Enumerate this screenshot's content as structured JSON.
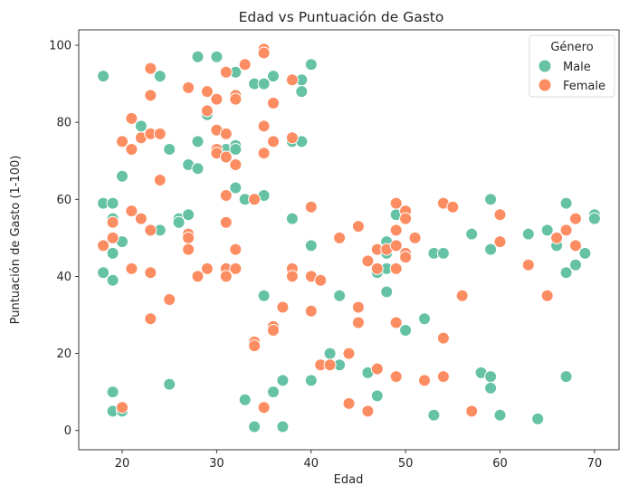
{
  "chart_data": {
    "type": "scatter",
    "title": "Edad vs Puntuación de Gasto",
    "xlabel": "Edad",
    "ylabel": "Puntuación de Gasto (1-100)",
    "xlim": [
      15.4,
      72.6
    ],
    "ylim": [
      -5,
      104
    ],
    "xticks": [
      20,
      30,
      40,
      50,
      60,
      70
    ],
    "yticks": [
      0,
      20,
      40,
      60,
      80,
      100
    ],
    "grid": false,
    "legend": {
      "title": "Género",
      "placement": "top-right"
    },
    "series": [
      {
        "name": "Male",
        "color": "#66c2a5",
        "points": [
          [
            18,
            92
          ],
          [
            18,
            59
          ],
          [
            18,
            41
          ],
          [
            19,
            59
          ],
          [
            19,
            55
          ],
          [
            19,
            46
          ],
          [
            19,
            39
          ],
          [
            19,
            10
          ],
          [
            19,
            5
          ],
          [
            20,
            66
          ],
          [
            20,
            49
          ],
          [
            20,
            5
          ],
          [
            22,
            79
          ],
          [
            24,
            92
          ],
          [
            24,
            52
          ],
          [
            25,
            73
          ],
          [
            25,
            12
          ],
          [
            26,
            55
          ],
          [
            26,
            54
          ],
          [
            27,
            69
          ],
          [
            27,
            56
          ],
          [
            28,
            97
          ],
          [
            28,
            75
          ],
          [
            28,
            68
          ],
          [
            29,
            82
          ],
          [
            30,
            97
          ],
          [
            31,
            73
          ],
          [
            32,
            93
          ],
          [
            32,
            74
          ],
          [
            32,
            73
          ],
          [
            32,
            63
          ],
          [
            33,
            60
          ],
          [
            33,
            8
          ],
          [
            34,
            90
          ],
          [
            34,
            1
          ],
          [
            35,
            90
          ],
          [
            35,
            61
          ],
          [
            35,
            35
          ],
          [
            36,
            92
          ],
          [
            36,
            10
          ],
          [
            37,
            13
          ],
          [
            37,
            1
          ],
          [
            38,
            55
          ],
          [
            38,
            75
          ],
          [
            39,
            91
          ],
          [
            39,
            88
          ],
          [
            39,
            75
          ],
          [
            40,
            95
          ],
          [
            40,
            48
          ],
          [
            40,
            13
          ],
          [
            42,
            20
          ],
          [
            43,
            17
          ],
          [
            43,
            35
          ],
          [
            46,
            15
          ],
          [
            47,
            41
          ],
          [
            47,
            9
          ],
          [
            48,
            49
          ],
          [
            48,
            46
          ],
          [
            48,
            42
          ],
          [
            48,
            36
          ],
          [
            49,
            56
          ],
          [
            50,
            26
          ],
          [
            52,
            29
          ],
          [
            53,
            46
          ],
          [
            53,
            4
          ],
          [
            54,
            46
          ],
          [
            57,
            51
          ],
          [
            58,
            15
          ],
          [
            59,
            60
          ],
          [
            59,
            47
          ],
          [
            59,
            14
          ],
          [
            59,
            11
          ],
          [
            60,
            4
          ],
          [
            63,
            51
          ],
          [
            64,
            3
          ],
          [
            65,
            52
          ],
          [
            66,
            48
          ],
          [
            67,
            59
          ],
          [
            67,
            41
          ],
          [
            67,
            14
          ],
          [
            68,
            43
          ],
          [
            69,
            46
          ],
          [
            70,
            56
          ],
          [
            70,
            55
          ]
        ]
      },
      {
        "name": "Female",
        "color": "#fc8d62",
        "points": [
          [
            18,
            48
          ],
          [
            19,
            54
          ],
          [
            19,
            50
          ],
          [
            20,
            75
          ],
          [
            20,
            6
          ],
          [
            21,
            81
          ],
          [
            21,
            73
          ],
          [
            21,
            57
          ],
          [
            21,
            42
          ],
          [
            22,
            76
          ],
          [
            22,
            55
          ],
          [
            23,
            94
          ],
          [
            23,
            87
          ],
          [
            23,
            77
          ],
          [
            23,
            52
          ],
          [
            23,
            41
          ],
          [
            23,
            29
          ],
          [
            24,
            77
          ],
          [
            24,
            65
          ],
          [
            25,
            34
          ],
          [
            27,
            89
          ],
          [
            27,
            51
          ],
          [
            27,
            50
          ],
          [
            27,
            47
          ],
          [
            28,
            40
          ],
          [
            29,
            88
          ],
          [
            29,
            83
          ],
          [
            29,
            42
          ],
          [
            30,
            86
          ],
          [
            30,
            78
          ],
          [
            30,
            73
          ],
          [
            30,
            72
          ],
          [
            31,
            93
          ],
          [
            31,
            77
          ],
          [
            31,
            71
          ],
          [
            31,
            61
          ],
          [
            31,
            54
          ],
          [
            31,
            42
          ],
          [
            31,
            40
          ],
          [
            32,
            87
          ],
          [
            32,
            86
          ],
          [
            32,
            69
          ],
          [
            32,
            47
          ],
          [
            32,
            42
          ],
          [
            33,
            95
          ],
          [
            34,
            60
          ],
          [
            34,
            23
          ],
          [
            34,
            22
          ],
          [
            35,
            99
          ],
          [
            35,
            98
          ],
          [
            35,
            79
          ],
          [
            35,
            72
          ],
          [
            35,
            6
          ],
          [
            36,
            85
          ],
          [
            36,
            75
          ],
          [
            36,
            27
          ],
          [
            36,
            26
          ],
          [
            37,
            32
          ],
          [
            38,
            91
          ],
          [
            38,
            76
          ],
          [
            38,
            42
          ],
          [
            38,
            40
          ],
          [
            40,
            58
          ],
          [
            40,
            40
          ],
          [
            40,
            31
          ],
          [
            41,
            39
          ],
          [
            41,
            17
          ],
          [
            42,
            17
          ],
          [
            43,
            50
          ],
          [
            44,
            20
          ],
          [
            44,
            7
          ],
          [
            45,
            53
          ],
          [
            45,
            32
          ],
          [
            45,
            28
          ],
          [
            46,
            44
          ],
          [
            46,
            5
          ],
          [
            47,
            47
          ],
          [
            47,
            42
          ],
          [
            47,
            16
          ],
          [
            48,
            47
          ],
          [
            49,
            59
          ],
          [
            49,
            52
          ],
          [
            49,
            48
          ],
          [
            49,
            42
          ],
          [
            49,
            28
          ],
          [
            49,
            14
          ],
          [
            50,
            57
          ],
          [
            50,
            55
          ],
          [
            50,
            46
          ],
          [
            50,
            45
          ],
          [
            51,
            50
          ],
          [
            52,
            13
          ],
          [
            54,
            59
          ],
          [
            54,
            24
          ],
          [
            54,
            14
          ],
          [
            55,
            58
          ],
          [
            56,
            35
          ],
          [
            57,
            5
          ],
          [
            60,
            56
          ],
          [
            60,
            49
          ],
          [
            63,
            43
          ],
          [
            65,
            35
          ],
          [
            66,
            50
          ],
          [
            67,
            52
          ],
          [
            68,
            55
          ],
          [
            68,
            48
          ]
        ]
      }
    ]
  }
}
